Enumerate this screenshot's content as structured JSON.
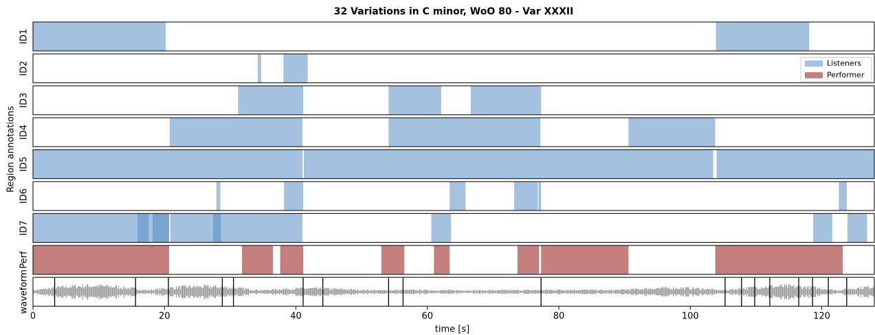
{
  "chart_data": {
    "type": "timeline",
    "title": "32 Variations in C minor, WoO 80 - Var XXXII",
    "xlabel": "time [s]",
    "ylabel": "Region annotations",
    "xlim": [
      0,
      128
    ],
    "xticks": [
      0,
      20,
      40,
      60,
      80,
      100,
      120
    ],
    "alpha": 0.5,
    "legend": "upper right",
    "series": [
      {
        "name": "Listeners",
        "color": "#4a86c2",
        "rows": [
          {
            "label": "ID1",
            "intervals": [
              [
                0,
                20.2
              ],
              [
                103.9,
                118.1
              ]
            ]
          },
          {
            "label": "ID2",
            "intervals": [
              [
                34.2,
                34.7
              ],
              [
                38.1,
                41.8
              ]
            ]
          },
          {
            "label": "ID3",
            "intervals": [
              [
                31.2,
                41.1
              ],
              [
                54.1,
                62.1
              ],
              [
                66.6,
                77.3
              ]
            ]
          },
          {
            "label": "ID4",
            "intervals": [
              [
                20.8,
                41.0
              ],
              [
                54.1,
                77.2
              ],
              [
                90.6,
                103.8
              ]
            ]
          },
          {
            "label": "ID5",
            "intervals": [
              [
                0,
                20.6
              ],
              [
                20.6,
                41.0
              ],
              [
                41.2,
                103.5
              ],
              [
                104.0,
                128
              ]
            ]
          },
          {
            "label": "ID6",
            "intervals": [
              [
                27.9,
                28.5
              ],
              [
                38.2,
                41.1
              ],
              [
                63.4,
                65.8
              ],
              [
                73.2,
                76.8
              ],
              [
                76.9,
                77.3
              ],
              [
                122.6,
                123.8
              ]
            ]
          },
          {
            "label": "ID7",
            "intervals": [
              [
                0,
                20.7
              ],
              [
                15.9,
                17.6
              ],
              [
                18.2,
                20.7
              ],
              [
                20.9,
                34.6
              ],
              [
                27.4,
                28.6
              ],
              [
                34.6,
                41.0
              ],
              [
                60.6,
                63.6
              ],
              [
                118.7,
                121.6
              ],
              [
                123.9,
                126.9
              ]
            ]
          }
        ]
      },
      {
        "name": "Performer",
        "color": "#8b0000",
        "rows": [
          {
            "label": "Perf",
            "intervals": [
              [
                0,
                20.7
              ],
              [
                31.8,
                36.5
              ],
              [
                37.6,
                41.1
              ],
              [
                53.0,
                56.5
              ],
              [
                61.0,
                63.4
              ],
              [
                73.7,
                77.0
              ],
              [
                77.3,
                90.6
              ],
              [
                103.8,
                123.2
              ]
            ]
          }
        ]
      }
    ],
    "waveform": {
      "label": "waveform",
      "markers": [
        3.3,
        15.6,
        20.6,
        28.8,
        30.5,
        41.1,
        44.1,
        54.1,
        56.3,
        77.3,
        105.3,
        107.8,
        109.8,
        112.1,
        116.5,
        118.6,
        121.0,
        123.8
      ]
    }
  }
}
